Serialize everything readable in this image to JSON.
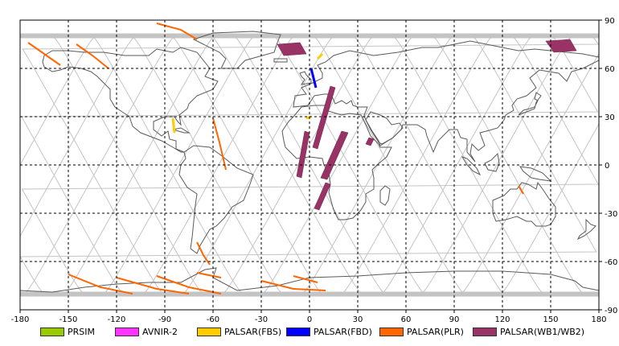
{
  "map": {
    "lon_range": [
      -180,
      180
    ],
    "lat_range": [
      -90,
      90
    ],
    "x_ticks": [
      "-180",
      "-150",
      "-120",
      "-90",
      "-60",
      "-30",
      "0",
      "30",
      "60",
      "90",
      "120",
      "150",
      "180"
    ],
    "y_ticks": [
      "90",
      "60",
      "30",
      "0",
      "-30",
      "-60",
      "-90"
    ],
    "grid_step_degrees": 30,
    "grid": true,
    "colors": {
      "background": "#ffffff",
      "coastline": "#5a5a5a",
      "orbit_track": "#c4c4c4",
      "grid": "#000000"
    }
  },
  "legend": [
    {
      "label": "PRSIM",
      "color": "#99cc00"
    },
    {
      "label": "AVNIR-2",
      "color": "#ff33ff"
    },
    {
      "label": "PALSAR(FBS)",
      "color": "#ffcc00"
    },
    {
      "label": "PALSAR(FBD)",
      "color": "#0000ff"
    },
    {
      "label": "PALSAR(PLR)",
      "color": "#ff6600"
    },
    {
      "label": "PALSAR(WB1/WB2)",
      "color": "#993366"
    }
  ],
  "acquisitions": {
    "wb": [
      [
        [
          -20,
          75
        ],
        [
          -6,
          76
        ],
        [
          -2,
          69
        ],
        [
          -16,
          68
        ]
      ],
      [
        [
          147,
          77
        ],
        [
          162,
          78
        ],
        [
          166,
          71
        ],
        [
          152,
          70
        ]
      ],
      [
        [
          13,
          49
        ],
        [
          16,
          48
        ],
        [
          5,
          10
        ],
        [
          2,
          11
        ]
      ],
      [
        [
          -3,
          21
        ],
        [
          0,
          20
        ],
        [
          -5,
          -8
        ],
        [
          -8,
          -7
        ]
      ],
      [
        [
          10,
          -11
        ],
        [
          13,
          -12
        ],
        [
          6,
          -28
        ],
        [
          3,
          -27
        ]
      ],
      [
        [
          20,
          21
        ],
        [
          24,
          20
        ],
        [
          11,
          -9
        ],
        [
          7,
          -8
        ]
      ],
      [
        [
          37,
          17
        ],
        [
          40,
          16
        ],
        [
          38,
          12
        ],
        [
          35,
          13
        ]
      ]
    ],
    "plr": [
      [
        [
          -175,
          76
        ],
        [
          -165,
          69
        ],
        [
          -155,
          62
        ]
      ],
      [
        [
          -145,
          75
        ],
        [
          -135,
          68
        ],
        [
          -125,
          60
        ]
      ],
      [
        [
          -95,
          88
        ],
        [
          -80,
          84
        ],
        [
          -70,
          78
        ]
      ],
      [
        [
          -60,
          29
        ],
        [
          -56,
          14
        ],
        [
          -52,
          -3
        ]
      ],
      [
        [
          -70,
          -48
        ],
        [
          -66,
          -56
        ],
        [
          -62,
          -62
        ]
      ],
      [
        [
          -150,
          -68
        ],
        [
          -130,
          -76
        ],
        [
          -110,
          -80
        ]
      ],
      [
        [
          -120,
          -70
        ],
        [
          -95,
          -77
        ],
        [
          -75,
          -80
        ]
      ],
      [
        [
          -95,
          -69
        ],
        [
          -75,
          -76
        ],
        [
          -55,
          -80
        ]
      ],
      [
        [
          -70,
          -67
        ],
        [
          -55,
          -70
        ]
      ],
      [
        [
          -30,
          -72
        ],
        [
          -10,
          -77
        ],
        [
          10,
          -78
        ]
      ],
      [
        [
          -10,
          -69
        ],
        [
          5,
          -73
        ]
      ],
      [
        [
          130,
          -13
        ],
        [
          133,
          -18
        ]
      ]
    ],
    "fbs": [
      [
        [
          -85,
          29
        ],
        [
          -84,
          20
        ]
      ],
      [
        [
          5,
          66
        ],
        [
          8,
          69
        ]
      ],
      [
        [
          -2,
          29
        ],
        [
          1,
          30
        ]
      ]
    ],
    "fbd": [
      [
        [
          1,
          60
        ],
        [
          4,
          48
        ]
      ]
    ]
  }
}
